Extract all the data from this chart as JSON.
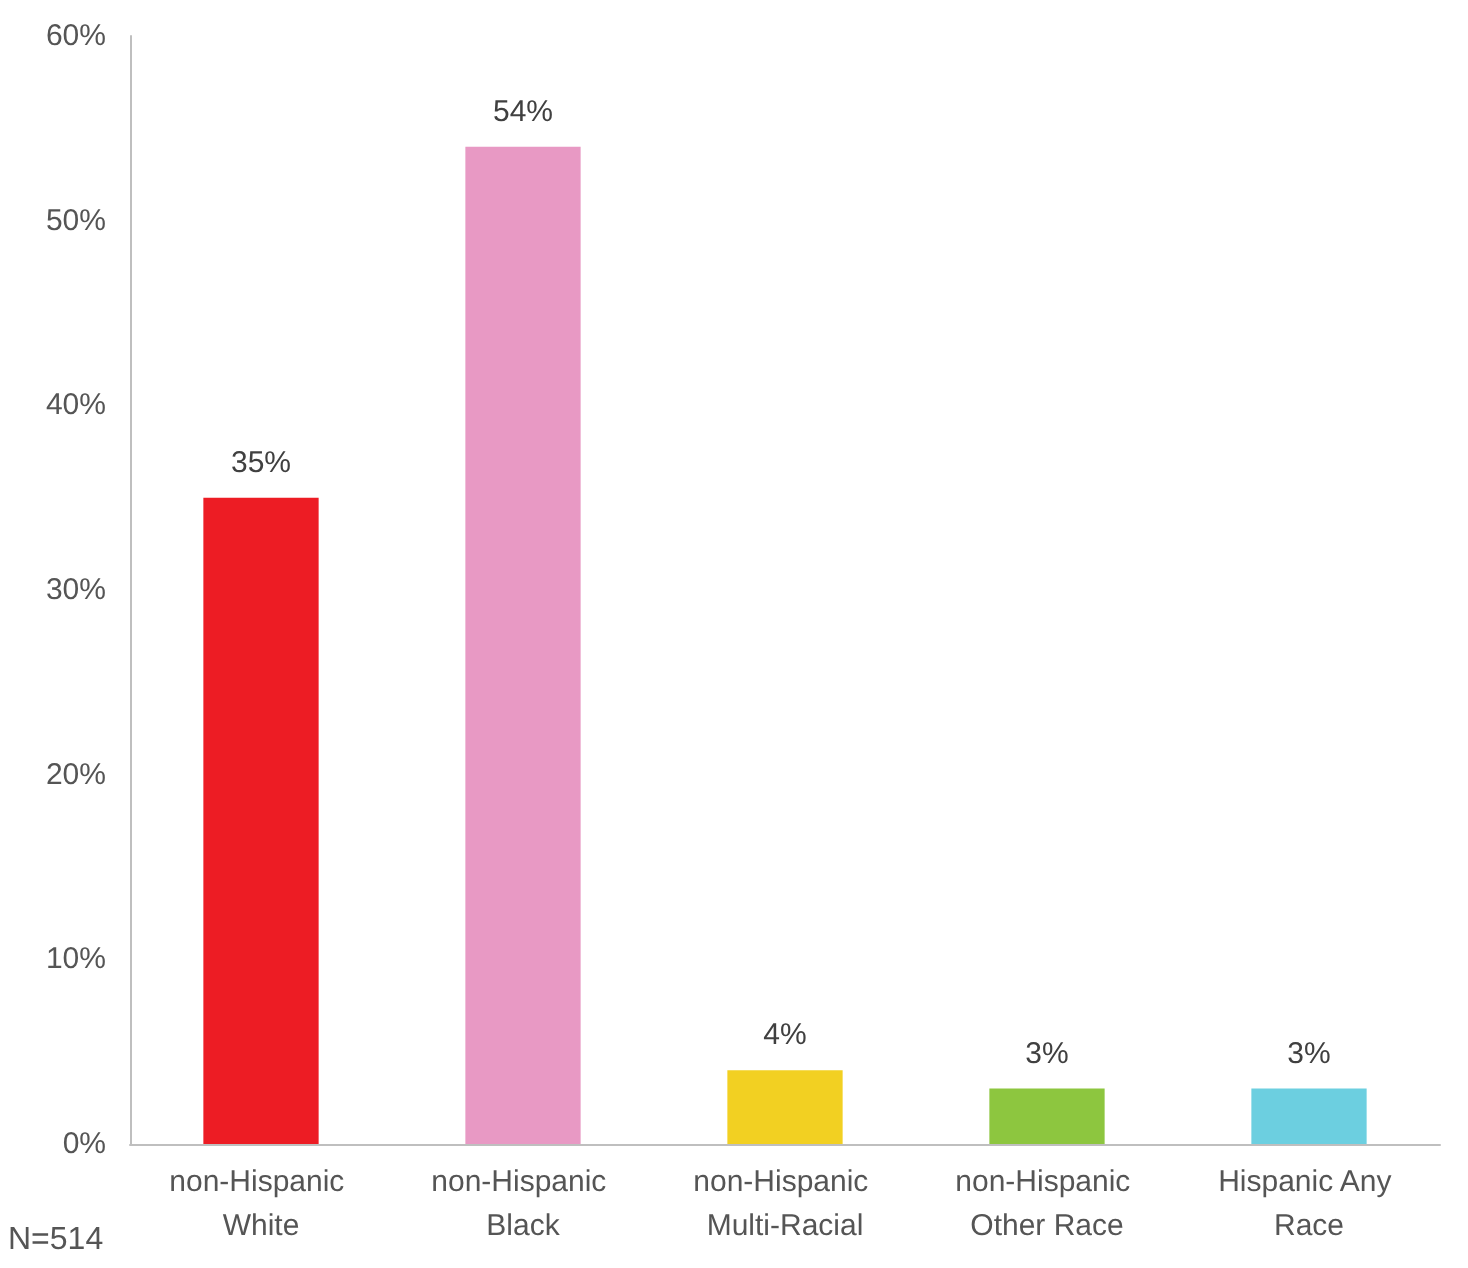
{
  "chart_data": {
    "type": "bar",
    "categories": [
      "non-Hispanic White",
      "non-Hispanic Black",
      "non-Hispanic Multi-Racial",
      "non-Hispanic Other Race",
      "Hispanic Any Race"
    ],
    "values": [
      35,
      54,
      4,
      3,
      3
    ],
    "colors": [
      "#ed1c24",
      "#e899c4",
      "#f2d022",
      "#8dc63f",
      "#6ccfe0"
    ],
    "value_labels": [
      "35%",
      "54%",
      "4%",
      "3%",
      "3%"
    ],
    "ylim": [
      0,
      60
    ],
    "yticks": [
      {
        "value": 0,
        "label": "0%"
      },
      {
        "value": 10,
        "label": "10%"
      },
      {
        "value": 20,
        "label": "20%"
      },
      {
        "value": 30,
        "label": "30%"
      },
      {
        "value": 40,
        "label": "40%"
      },
      {
        "value": 50,
        "label": "50%"
      },
      {
        "value": 60,
        "label": "60%"
      }
    ],
    "grid": false,
    "annotations": [
      "N=514"
    ]
  }
}
